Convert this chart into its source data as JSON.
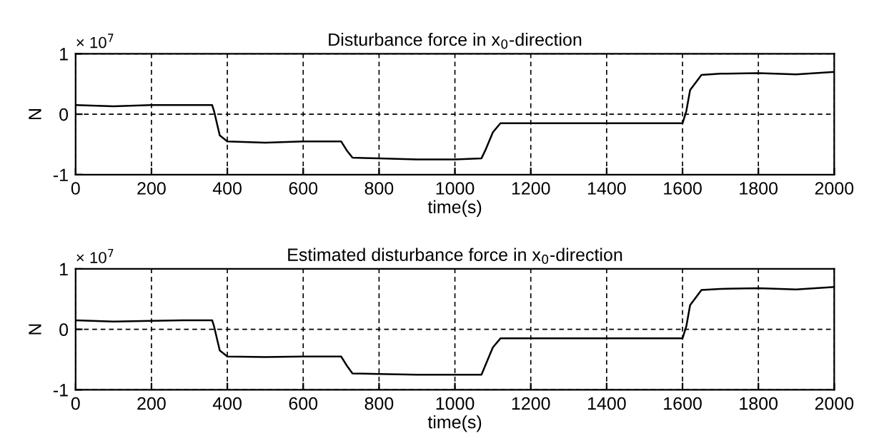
{
  "chart_data": [
    {
      "type": "line",
      "title": "Disturbance force in x$_{0}$-direction",
      "xlabel": "time(s)",
      "ylabel": "N",
      "annotations": [
        "× 10$^{7}$"
      ],
      "x": [
        0,
        100,
        200,
        300,
        360,
        365,
        380,
        400,
        500,
        600,
        700,
        715,
        730,
        800,
        900,
        1000,
        1070,
        1080,
        1100,
        1120,
        1200,
        1400,
        1600,
        1610,
        1620,
        1650,
        1700,
        1800,
        1900,
        2000
      ],
      "series": [
        {
          "color": "#000000",
          "values": [
            0.15,
            0.13,
            0.15,
            0.15,
            0.15,
            0.05,
            -0.35,
            -0.45,
            -0.47,
            -0.45,
            -0.45,
            -0.6,
            -0.72,
            -0.73,
            -0.75,
            -0.75,
            -0.73,
            -0.6,
            -0.3,
            -0.15,
            -0.15,
            -0.15,
            -0.15,
            0.05,
            0.4,
            0.65,
            0.67,
            0.68,
            0.66,
            0.7
          ]
        }
      ],
      "xlim": [
        0,
        2000
      ],
      "xticks": [
        0,
        200,
        400,
        600,
        800,
        1000,
        1200,
        1400,
        1600,
        1800,
        2000
      ],
      "ylim": [
        -1,
        1
      ],
      "yticks": [
        -1,
        0,
        1
      ],
      "grid": true,
      "line_style": "solid"
    },
    {
      "type": "line",
      "title": "Estimated disturbance force in x$_{0}$-direction",
      "xlabel": "time(s)",
      "ylabel": "N",
      "annotations": [
        "× 10$^{7}$"
      ],
      "x": [
        0,
        100,
        200,
        300,
        360,
        365,
        380,
        400,
        500,
        600,
        700,
        715,
        730,
        800,
        900,
        1000,
        1070,
        1080,
        1100,
        1120,
        1200,
        1400,
        1600,
        1610,
        1620,
        1650,
        1700,
        1800,
        1900,
        2000
      ],
      "series": [
        {
          "color": "#000000",
          "values": [
            0.15,
            0.13,
            0.14,
            0.15,
            0.15,
            0.05,
            -0.35,
            -0.45,
            -0.46,
            -0.45,
            -0.45,
            -0.6,
            -0.73,
            -0.74,
            -0.75,
            -0.75,
            -0.75,
            -0.6,
            -0.3,
            -0.15,
            -0.15,
            -0.15,
            -0.15,
            0.05,
            0.4,
            0.65,
            0.67,
            0.68,
            0.66,
            0.7
          ]
        }
      ],
      "xlim": [
        0,
        2000
      ],
      "xticks": [
        0,
        200,
        400,
        600,
        800,
        1000,
        1200,
        1400,
        1600,
        1800,
        2000
      ],
      "ylim": [
        -1,
        1
      ],
      "yticks": [
        -1,
        0,
        1
      ],
      "grid": true,
      "line_style": "solid"
    }
  ]
}
